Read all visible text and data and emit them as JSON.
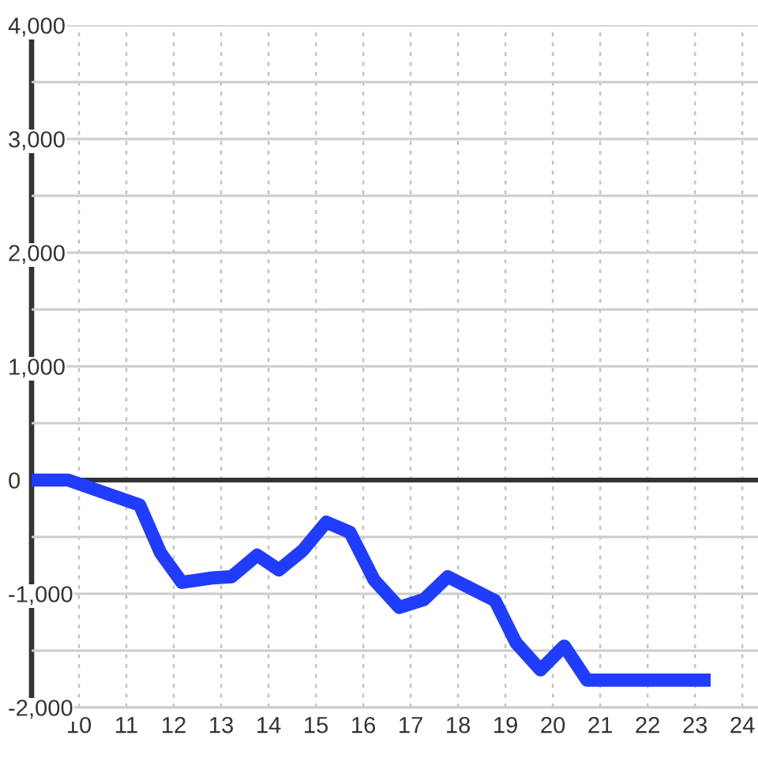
{
  "chart_data": {
    "type": "line",
    "x": [
      9,
      9.77,
      11.28,
      11.72,
      12.17,
      12.83,
      13.22,
      13.76,
      14.22,
      14.72,
      15.22,
      15.72,
      16.23,
      16.76,
      17.28,
      17.78,
      18.78,
      19.22,
      19.74,
      20.24,
      20.72,
      23.33
    ],
    "values": [
      0,
      0,
      -220,
      -640,
      -900,
      -860,
      -850,
      -660,
      -790,
      -620,
      -370,
      -460,
      -880,
      -1120,
      -1050,
      -850,
      -1060,
      -1430,
      -1670,
      -1460,
      -1760,
      -1760
    ],
    "color": "#1f3cff",
    "xlim": [
      9,
      24.33
    ],
    "ylim": [
      -2000,
      4000
    ],
    "xticks": [
      10,
      11,
      12,
      13,
      14,
      15,
      16,
      17,
      18,
      19,
      20,
      21,
      22,
      23,
      24
    ],
    "yticks": [
      {
        "value": -2000,
        "label": "-2,000"
      },
      {
        "value": -1500,
        "label": null
      },
      {
        "value": -1000,
        "label": "-1,000"
      },
      {
        "value": -500,
        "label": null
      },
      0,
      {
        "value": 500,
        "label": null
      },
      {
        "value": 1000,
        "label": "1,000"
      },
      {
        "value": 1500,
        "label": null
      },
      {
        "value": 2000,
        "label": "2,000"
      },
      {
        "value": 2500,
        "label": null
      },
      {
        "value": 3000,
        "label": "3,000"
      },
      {
        "value": 3500,
        "label": null
      },
      {
        "value": 4000,
        "label": "4,000"
      }
    ],
    "grid": true,
    "ref_lines": [
      {
        "axis": "y",
        "value": 0,
        "color": "#333333"
      }
    ]
  }
}
